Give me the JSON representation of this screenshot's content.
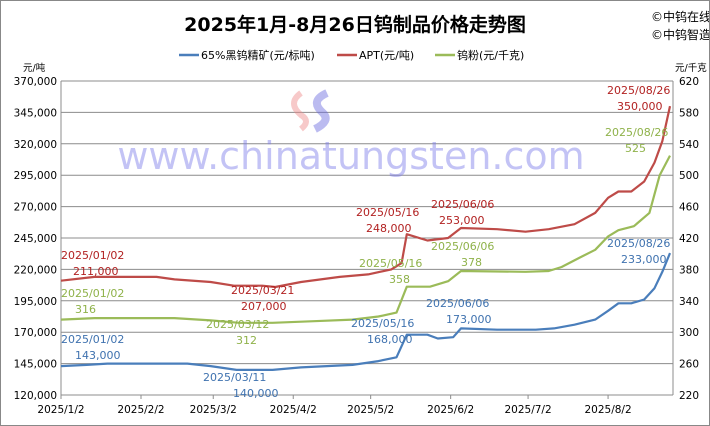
{
  "chart_data": {
    "type": "line",
    "title": "2025年1月-8月26日钨制品价格走势图",
    "copyright": [
      "©中钨在线",
      "©中钨智造"
    ],
    "watermark": "www.chinatungsten.com",
    "left_unit": "元/吨",
    "right_unit": "元/千克",
    "x_ticks": [
      "2025/1/2",
      "2025/2/2",
      "2025/3/2",
      "2025/4/2",
      "2025/5/2",
      "2025/6/2",
      "2025/7/2",
      "2025/8/2"
    ],
    "xlim": [
      "2025-01-02",
      "2025-08-26"
    ],
    "ylim_left": [
      120000,
      370000
    ],
    "yticks_left": [
      "120,000",
      "145,000",
      "170,000",
      "195,000",
      "220,000",
      "245,000",
      "270,000",
      "295,000",
      "320,000",
      "345,000",
      "370,000"
    ],
    "ylim_right": [
      220,
      620
    ],
    "yticks_right": [
      "220",
      "260",
      "300",
      "340",
      "380",
      "420",
      "460",
      "500",
      "540",
      "580",
      "620"
    ],
    "grid": true,
    "legend_placement": "top",
    "series": [
      {
        "name": "65%黑钨精矿(元/标吨)",
        "axis": "left",
        "color": "#4A7EBB",
        "points": [
          [
            "2025-01-02",
            143000
          ],
          [
            "2025-01-12",
            144000
          ],
          [
            "2025-01-20",
            145000
          ],
          [
            "2025-02-20",
            145000
          ],
          [
            "2025-03-01",
            143000
          ],
          [
            "2025-03-11",
            140000
          ],
          [
            "2025-03-25",
            140000
          ],
          [
            "2025-04-05",
            142000
          ],
          [
            "2025-04-25",
            144000
          ],
          [
            "2025-05-05",
            147000
          ],
          [
            "2025-05-12",
            150000
          ],
          [
            "2025-05-16",
            168000
          ],
          [
            "2025-05-24",
            168000
          ],
          [
            "2025-05-28",
            165000
          ],
          [
            "2025-06-03",
            166000
          ],
          [
            "2025-06-06",
            173000
          ],
          [
            "2025-06-20",
            172000
          ],
          [
            "2025-07-05",
            172000
          ],
          [
            "2025-07-12",
            173000
          ],
          [
            "2025-07-20",
            176000
          ],
          [
            "2025-07-28",
            180000
          ],
          [
            "2025-08-02",
            187000
          ],
          [
            "2025-08-06",
            193000
          ],
          [
            "2025-08-11",
            193000
          ],
          [
            "2025-08-16",
            196000
          ],
          [
            "2025-08-20",
            205000
          ],
          [
            "2025-08-23",
            218000
          ],
          [
            "2025-08-26",
            233000
          ]
        ]
      },
      {
        "name": "APT(元/吨)",
        "axis": "left",
        "color": "#BE4B48",
        "points": [
          [
            "2025-01-02",
            211000
          ],
          [
            "2025-01-15",
            214000
          ],
          [
            "2025-02-08",
            214000
          ],
          [
            "2025-02-15",
            212000
          ],
          [
            "2025-03-01",
            210000
          ],
          [
            "2025-03-10",
            207000
          ],
          [
            "2025-03-21",
            207000
          ],
          [
            "2025-03-26",
            206000
          ],
          [
            "2025-04-05",
            210000
          ],
          [
            "2025-04-20",
            214000
          ],
          [
            "2025-05-01",
            216000
          ],
          [
            "2025-05-10",
            220000
          ],
          [
            "2025-05-14",
            225000
          ],
          [
            "2025-05-16",
            248000
          ],
          [
            "2025-05-24",
            243000
          ],
          [
            "2025-06-01",
            245000
          ],
          [
            "2025-06-06",
            253000
          ],
          [
            "2025-06-20",
            252000
          ],
          [
            "2025-07-01",
            250000
          ],
          [
            "2025-07-10",
            252000
          ],
          [
            "2025-07-20",
            256000
          ],
          [
            "2025-07-28",
            265000
          ],
          [
            "2025-08-02",
            277000
          ],
          [
            "2025-08-06",
            282000
          ],
          [
            "2025-08-11",
            282000
          ],
          [
            "2025-08-16",
            290000
          ],
          [
            "2025-08-20",
            305000
          ],
          [
            "2025-08-23",
            322000
          ],
          [
            "2025-08-26",
            350000
          ]
        ]
      },
      {
        "name": "钨粉(元/千克)",
        "axis": "right",
        "color": "#9BBB59",
        "points": [
          [
            "2025-01-02",
            316
          ],
          [
            "2025-01-15",
            318
          ],
          [
            "2025-02-15",
            318
          ],
          [
            "2025-03-01",
            315
          ],
          [
            "2025-03-12",
            312
          ],
          [
            "2025-03-25",
            312
          ],
          [
            "2025-04-10",
            314
          ],
          [
            "2025-04-25",
            316
          ],
          [
            "2025-05-05",
            320
          ],
          [
            "2025-05-12",
            325
          ],
          [
            "2025-05-16",
            358
          ],
          [
            "2025-05-25",
            358
          ],
          [
            "2025-06-01",
            365
          ],
          [
            "2025-06-06",
            378
          ],
          [
            "2025-07-01",
            377
          ],
          [
            "2025-07-10",
            378
          ],
          [
            "2025-07-15",
            383
          ],
          [
            "2025-07-22",
            395
          ],
          [
            "2025-07-28",
            405
          ],
          [
            "2025-08-02",
            422
          ],
          [
            "2025-08-06",
            430
          ],
          [
            "2025-08-12",
            435
          ],
          [
            "2025-08-18",
            452
          ],
          [
            "2025-08-22",
            500
          ],
          [
            "2025-08-26",
            525
          ]
        ]
      }
    ],
    "annotations": [
      {
        "series": 1,
        "date": "2025/01/02",
        "value": "211,000"
      },
      {
        "series": 1,
        "date": "2025/03/21",
        "value": "207,000"
      },
      {
        "series": 1,
        "date": "2025/05/16",
        "value": "248,000"
      },
      {
        "series": 1,
        "date": "2025/06/06",
        "value": "253,000"
      },
      {
        "series": 1,
        "date": "2025/08/26",
        "value": "350,000"
      },
      {
        "series": 2,
        "date": "2025/01/02",
        "value": "316"
      },
      {
        "series": 2,
        "date": "2025/03/12",
        "value": "312"
      },
      {
        "series": 2,
        "date": "2025/05/16",
        "value": "358"
      },
      {
        "series": 2,
        "date": "2025/06/06",
        "value": "378"
      },
      {
        "series": 2,
        "date": "2025/08/26",
        "value": "525"
      },
      {
        "series": 0,
        "date": "2025/01/02",
        "value": "143,000"
      },
      {
        "series": 0,
        "date": "2025/03/11",
        "value": "140,000"
      },
      {
        "series": 0,
        "date": "2025/05/16",
        "value": "168,000"
      },
      {
        "series": 0,
        "date": "2025/06/06",
        "value": "173,000"
      },
      {
        "series": 0,
        "date": "2025/08/26",
        "value": "233,000"
      }
    ]
  }
}
